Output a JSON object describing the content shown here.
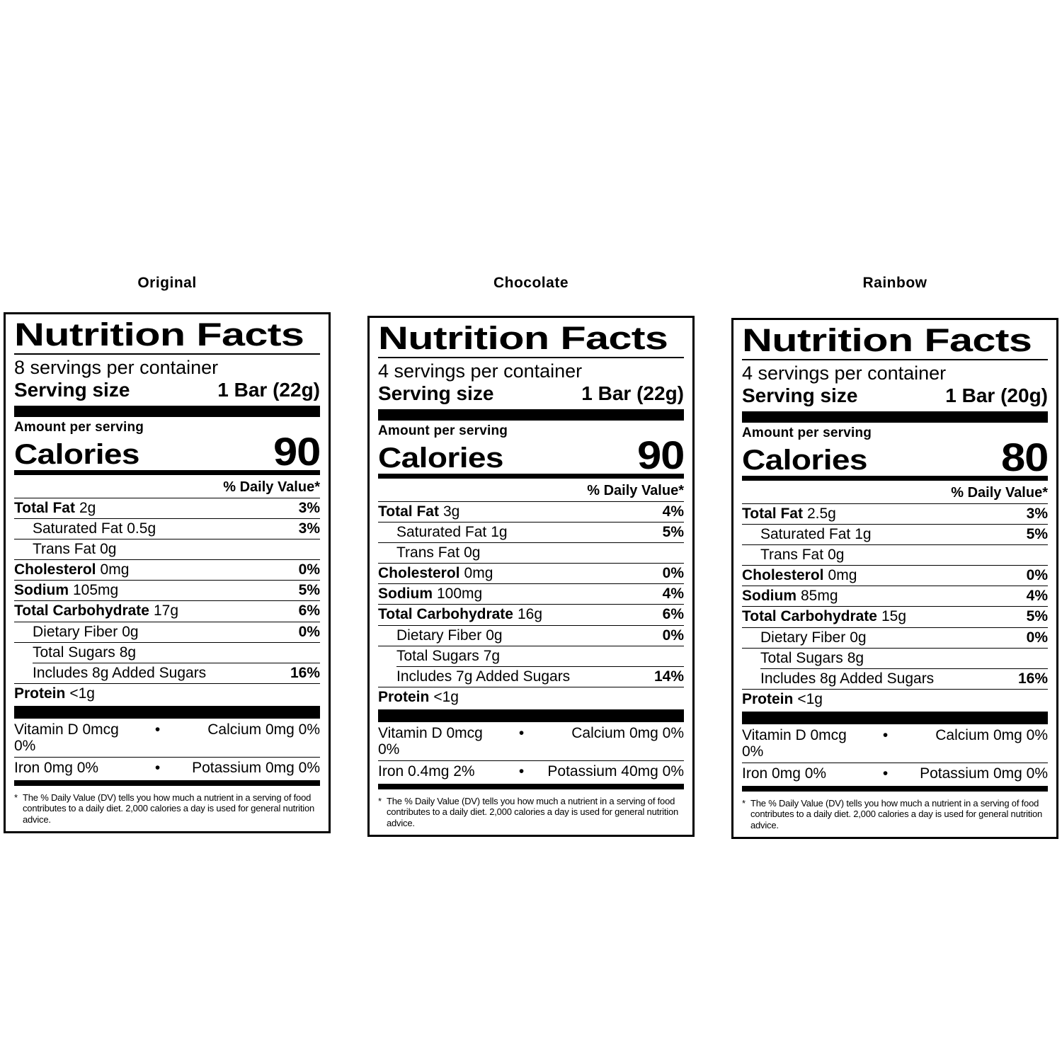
{
  "bullet": "•",
  "columns": [
    {
      "title": "Original",
      "label": {
        "title": "Nutrition Facts",
        "servings_per_container": "8 servings per container",
        "serving_size_label": "Serving size",
        "serving_size_value": "1 Bar (22g)",
        "amount_per_serving": "Amount per serving",
        "calories_label": "Calories",
        "calories_value": "90",
        "daily_value_header": "% Daily Value*",
        "rows": [
          {
            "name": "Total Fat",
            "amount": "2g",
            "percent": "3%",
            "bold": true,
            "indent": 0
          },
          {
            "name": "Saturated Fat",
            "amount": "0.5g",
            "percent": "3%",
            "bold": false,
            "indent": 1
          },
          {
            "name": "Trans Fat",
            "amount": "0g",
            "percent": "",
            "bold": false,
            "indent": 1
          },
          {
            "name": "Cholesterol",
            "amount": "0mg",
            "percent": "0%",
            "bold": true,
            "indent": 0
          },
          {
            "name": "Sodium",
            "amount": "105mg",
            "percent": "5%",
            "bold": true,
            "indent": 0
          },
          {
            "name": "Total Carbohydrate",
            "amount": "17g",
            "percent": "6%",
            "bold": true,
            "indent": 0
          },
          {
            "name": "Dietary Fiber",
            "amount": "0g",
            "percent": "0%",
            "bold": false,
            "indent": 1
          },
          {
            "name": "Total Sugars",
            "amount": "8g",
            "percent": "",
            "bold": false,
            "indent": 1
          },
          {
            "name": "Includes 8g Added Sugars",
            "amount": "",
            "percent": "16%",
            "bold": false,
            "indent": 1,
            "indent_rule": true
          },
          {
            "name": "Protein",
            "amount": "<1g",
            "percent": "",
            "bold": true,
            "indent": 0
          }
        ],
        "micros": [
          {
            "left": "Vitamin D 0mcg 0%",
            "right": "Calcium 0mg 0%"
          },
          {
            "left": "Iron 0mg 0%",
            "right": "Potassium 0mg 0%"
          }
        ],
        "footnote_marker": "*",
        "footnote": "The % Daily Value (DV) tells you how much a nutrient in a serving of food contributes to a daily diet. 2,000 calories a day is used for general nutrition advice."
      }
    },
    {
      "title": "Chocolate",
      "label": {
        "title": "Nutrition Facts",
        "servings_per_container": "4 servings per container",
        "serving_size_label": "Serving size",
        "serving_size_value": "1 Bar (22g)",
        "amount_per_serving": "Amount per serving",
        "calories_label": "Calories",
        "calories_value": "90",
        "daily_value_header": "% Daily Value*",
        "rows": [
          {
            "name": "Total Fat",
            "amount": "3g",
            "percent": "4%",
            "bold": true,
            "indent": 0
          },
          {
            "name": "Saturated Fat",
            "amount": "1g",
            "percent": "5%",
            "bold": false,
            "indent": 1
          },
          {
            "name": "Trans Fat",
            "amount": "0g",
            "percent": "",
            "bold": false,
            "indent": 1
          },
          {
            "name": "Cholesterol",
            "amount": "0mg",
            "percent": "0%",
            "bold": true,
            "indent": 0
          },
          {
            "name": "Sodium",
            "amount": "100mg",
            "percent": "4%",
            "bold": true,
            "indent": 0
          },
          {
            "name": "Total Carbohydrate",
            "amount": "16g",
            "percent": "6%",
            "bold": true,
            "indent": 0
          },
          {
            "name": "Dietary Fiber",
            "amount": "0g",
            "percent": "0%",
            "bold": false,
            "indent": 1
          },
          {
            "name": "Total Sugars",
            "amount": "7g",
            "percent": "",
            "bold": false,
            "indent": 1
          },
          {
            "name": "Includes 7g Added Sugars",
            "amount": "",
            "percent": "14%",
            "bold": false,
            "indent": 1,
            "indent_rule": true
          },
          {
            "name": "Protein",
            "amount": "<1g",
            "percent": "",
            "bold": true,
            "indent": 0
          }
        ],
        "micros": [
          {
            "left": "Vitamin D 0mcg 0%",
            "right": "Calcium 0mg 0%"
          },
          {
            "left": "Iron 0.4mg 2%",
            "right": "Potassium 40mg 0%"
          }
        ],
        "footnote_marker": "*",
        "footnote": "The % Daily Value (DV) tells you how much a nutrient in a serving of food contributes to a daily diet. 2,000 calories a day is used for general nutrition advice."
      }
    },
    {
      "title": "Rainbow",
      "label": {
        "title": "Nutrition Facts",
        "servings_per_container": "4 servings per container",
        "serving_size_label": "Serving size",
        "serving_size_value": "1 Bar (20g)",
        "amount_per_serving": "Amount per serving",
        "calories_label": "Calories",
        "calories_value": "80",
        "daily_value_header": "% Daily Value*",
        "rows": [
          {
            "name": "Total Fat",
            "amount": "2.5g",
            "percent": "3%",
            "bold": true,
            "indent": 0
          },
          {
            "name": "Saturated Fat",
            "amount": "1g",
            "percent": "5%",
            "bold": false,
            "indent": 1
          },
          {
            "name": "Trans Fat",
            "amount": "0g",
            "percent": "",
            "bold": false,
            "indent": 1
          },
          {
            "name": "Cholesterol",
            "amount": "0mg",
            "percent": "0%",
            "bold": true,
            "indent": 0
          },
          {
            "name": "Sodium",
            "amount": "85mg",
            "percent": "4%",
            "bold": true,
            "indent": 0
          },
          {
            "name": "Total Carbohydrate",
            "amount": "15g",
            "percent": "5%",
            "bold": true,
            "indent": 0
          },
          {
            "name": "Dietary Fiber",
            "amount": "0g",
            "percent": "0%",
            "bold": false,
            "indent": 1
          },
          {
            "name": "Total Sugars",
            "amount": "8g",
            "percent": "",
            "bold": false,
            "indent": 1
          },
          {
            "name": "Includes 8g Added Sugars",
            "amount": "",
            "percent": "16%",
            "bold": false,
            "indent": 1,
            "indent_rule": true
          },
          {
            "name": "Protein",
            "amount": "<1g",
            "percent": "",
            "bold": true,
            "indent": 0
          }
        ],
        "micros": [
          {
            "left": "Vitamin D 0mcg 0%",
            "right": "Calcium 0mg 0%"
          },
          {
            "left": "Iron 0mg 0%",
            "right": "Potassium 0mg 0%"
          }
        ],
        "footnote_marker": "*",
        "footnote": "The % Daily Value (DV) tells you how much a nutrient in a serving of food contributes to a daily diet. 2,000 calories a day is used for general nutrition advice."
      }
    }
  ]
}
